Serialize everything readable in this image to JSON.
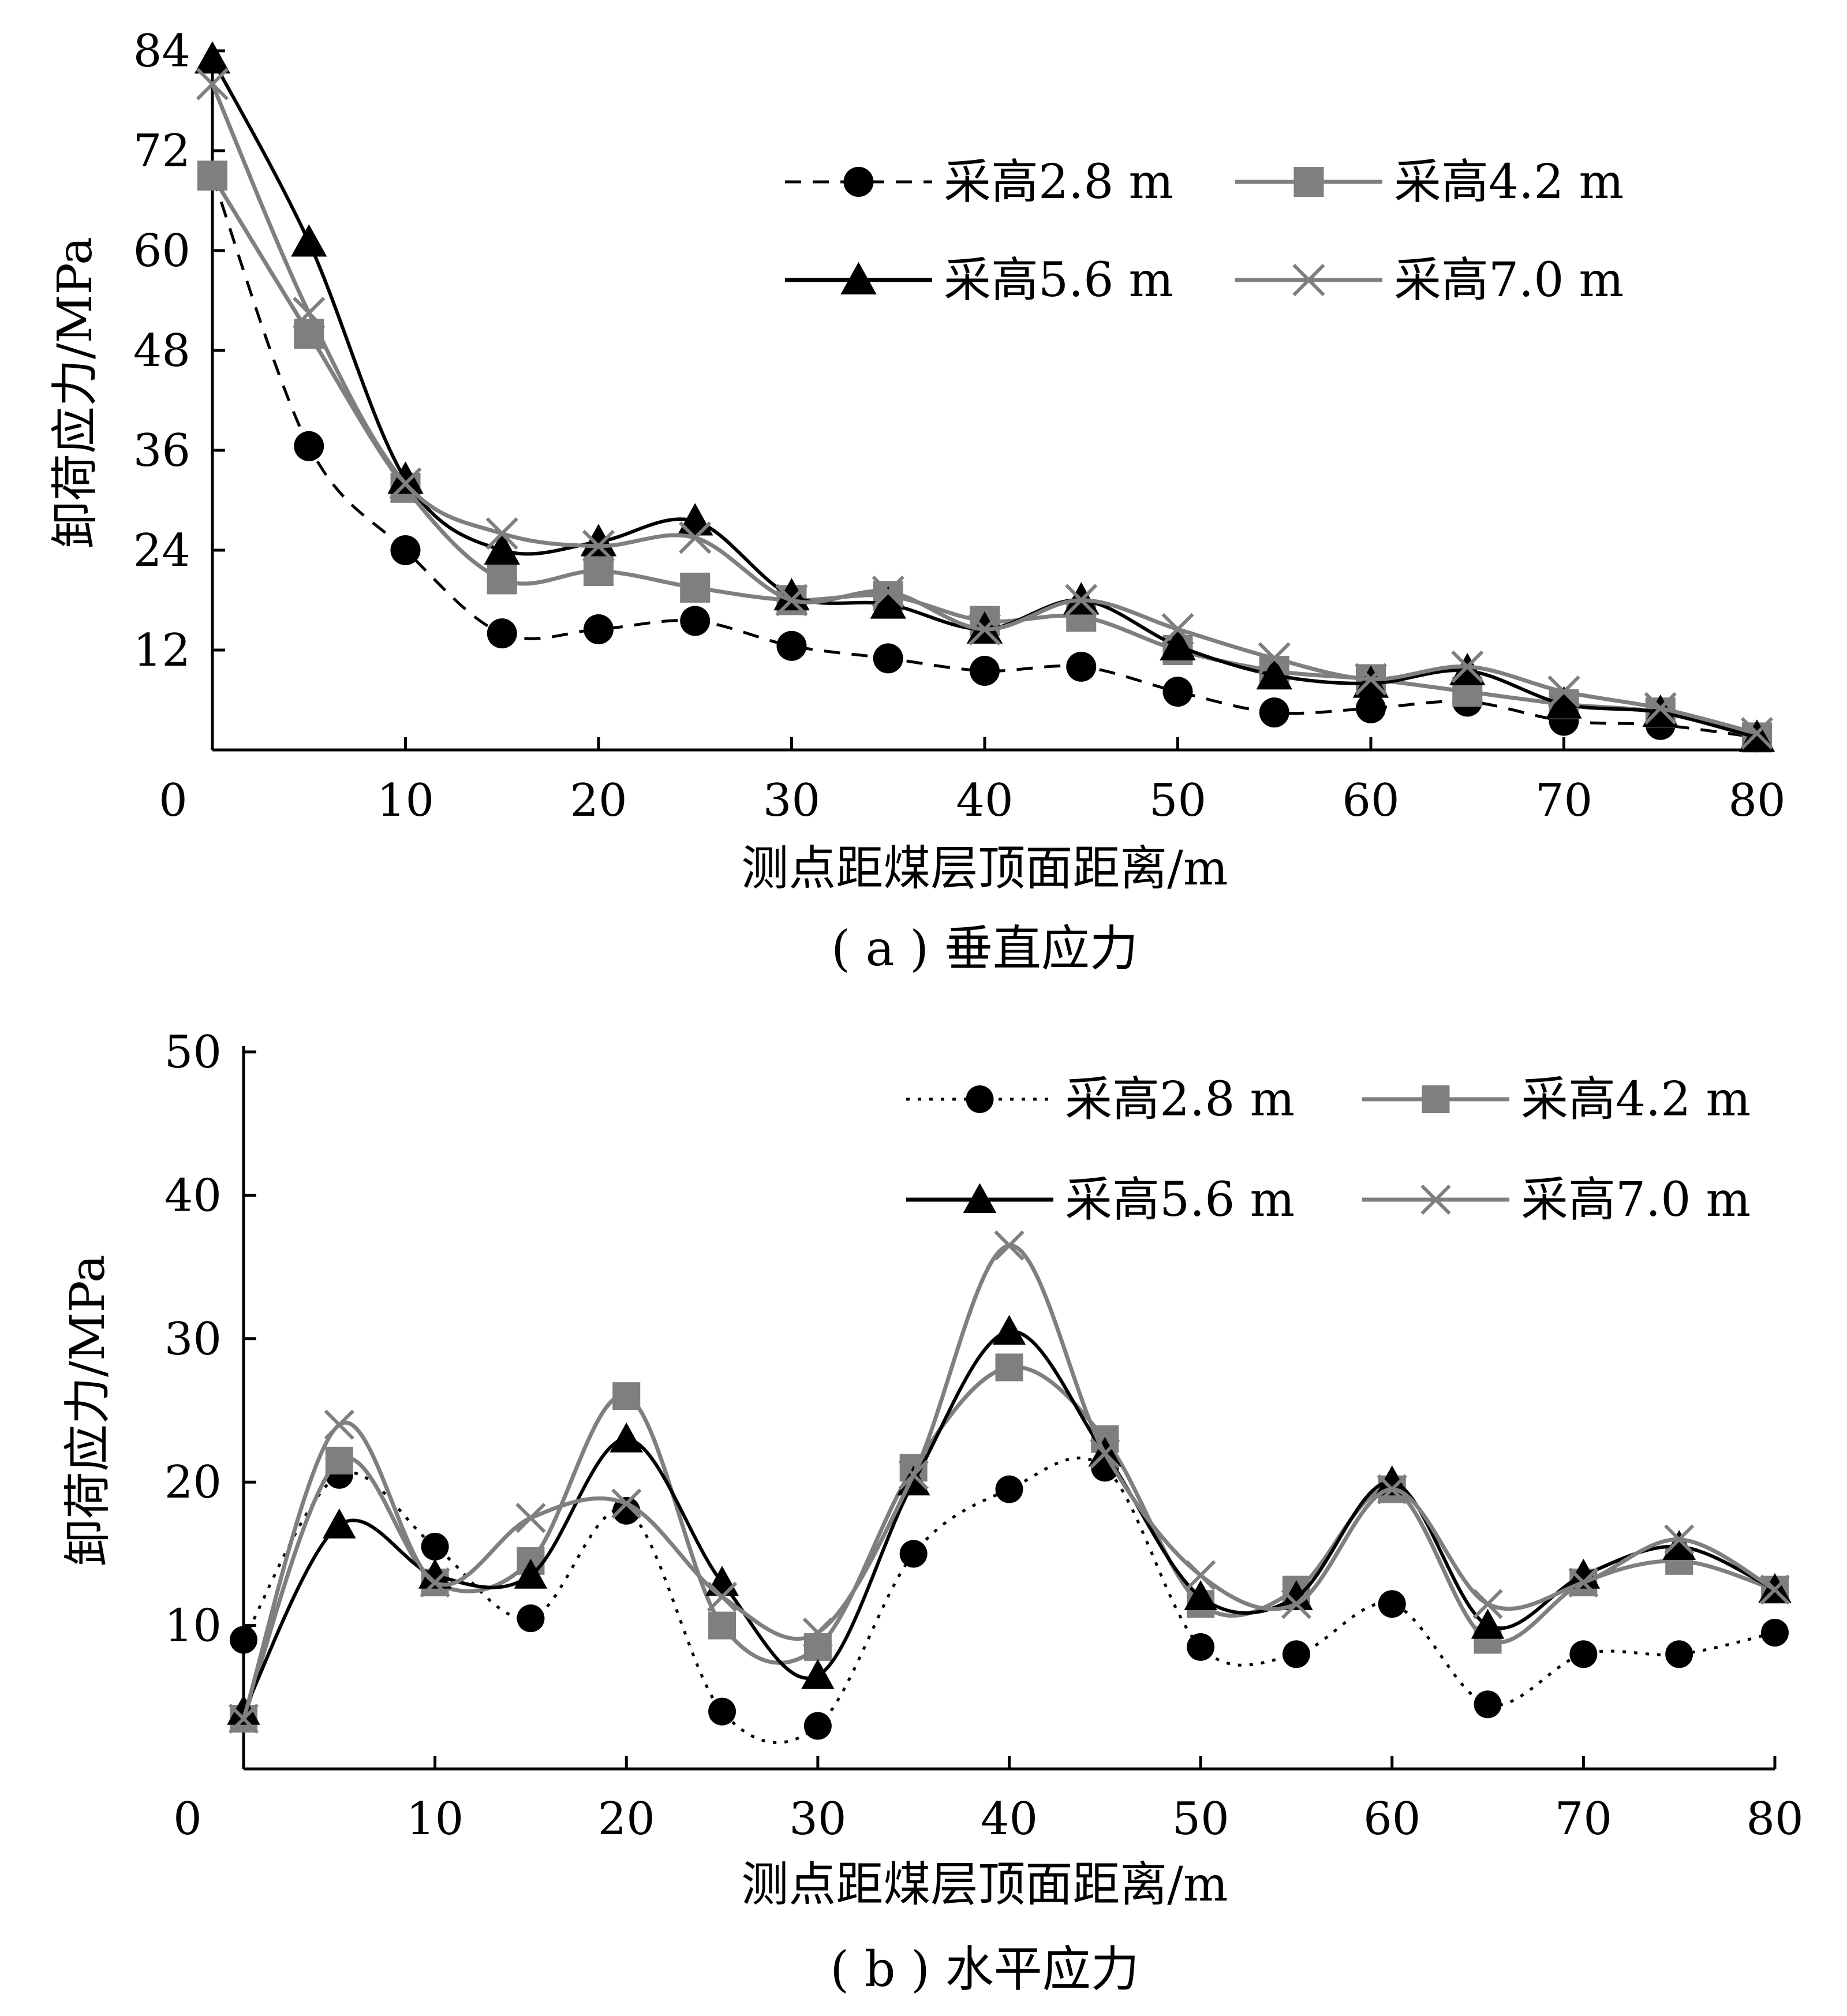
{
  "chart_data": [
    {
      "type": "line",
      "caption": "( a ) 垂直应力",
      "xlabel": "测点距煤层顶面距离/m",
      "ylabel": "卸荷应力/MPa",
      "xlim": [
        0,
        80
      ],
      "ylim": [
        0,
        84
      ],
      "xticks": [
        0,
        10,
        20,
        30,
        40,
        50,
        60,
        70,
        80
      ],
      "yticks": [
        12,
        24,
        36,
        48,
        60,
        72,
        84
      ],
      "x": [
        0,
        5,
        10,
        15,
        20,
        25,
        30,
        35,
        40,
        45,
        50,
        55,
        60,
        65,
        70,
        75,
        80
      ],
      "series": [
        {
          "name": "采高2.8 m",
          "marker": "circle",
          "color": "#000000",
          "dash": "dashed",
          "values": [
            69,
            36.5,
            24,
            14,
            14.5,
            15.5,
            12.5,
            11,
            9.5,
            10,
            7,
            4.5,
            5,
            5.8,
            3.5,
            3,
            1.5
          ]
        },
        {
          "name": "采高4.2 m",
          "marker": "square",
          "color": "#7f7f7f",
          "dash": "solid",
          "values": [
            69,
            50,
            31.5,
            20.5,
            21.5,
            19.5,
            18,
            18.5,
            15.5,
            16,
            12,
            9.5,
            8.5,
            7,
            5.5,
            4.5,
            1.5
          ]
        },
        {
          "name": "采高5.6 m",
          "marker": "triangle",
          "color": "#000000",
          "dash": "solid",
          "values": [
            83,
            61,
            32.5,
            24,
            25,
            27.5,
            18.5,
            17.5,
            14.5,
            18,
            12.5,
            9,
            8,
            9.5,
            5.5,
            4.5,
            1.5
          ]
        },
        {
          "name": "采高7.0 m",
          "marker": "x",
          "color": "#7f7f7f",
          "dash": "solid",
          "values": [
            80,
            52.5,
            32,
            26,
            24.5,
            25.5,
            18,
            19,
            14.5,
            18,
            14.5,
            11,
            8.5,
            10,
            7,
            5,
            2
          ]
        }
      ]
    },
    {
      "type": "line",
      "caption": "( b ) 水平应力",
      "xlabel": "测点距煤层顶面距离/m",
      "ylabel": "卸荷应力/MPa",
      "xlim": [
        0,
        80
      ],
      "ylim": [
        0,
        50
      ],
      "xticks": [
        0,
        10,
        20,
        30,
        40,
        50,
        60,
        70,
        80
      ],
      "yticks": [
        10,
        20,
        30,
        40,
        50
      ],
      "x": [
        0,
        5,
        10,
        15,
        20,
        25,
        30,
        35,
        40,
        45,
        50,
        55,
        60,
        65,
        70,
        75,
        80
      ],
      "series": [
        {
          "name": "采高2.8 m",
          "marker": "circle",
          "color": "#000000",
          "dash": "dotted",
          "values": [
            9,
            20.5,
            15.5,
            10.5,
            18,
            4,
            3,
            15,
            19.5,
            21,
            8.5,
            8,
            11.5,
            4.5,
            8,
            8,
            9.5
          ]
        },
        {
          "name": "采高4.2 m",
          "marker": "square",
          "color": "#7f7f7f",
          "dash": "solid",
          "values": [
            3.5,
            21.5,
            13,
            14.5,
            26,
            10,
            8.5,
            21,
            28,
            23,
            11.5,
            12.5,
            19.5,
            9,
            13,
            14.5,
            12.5
          ]
        },
        {
          "name": "采高5.6 m",
          "marker": "triangle",
          "color": "#000000",
          "dash": "solid",
          "values": [
            4,
            17,
            13.5,
            13.5,
            23,
            13,
            6.5,
            20,
            30.5,
            22,
            12,
            12,
            20,
            10,
            13.5,
            15.5,
            12.5
          ]
        },
        {
          "name": "采高7.0 m",
          "marker": "x",
          "color": "#7f7f7f",
          "dash": "solid",
          "values": [
            3.5,
            24,
            13,
            17.5,
            18.5,
            12,
            9.5,
            20.5,
            36.5,
            22,
            13.5,
            11.5,
            19.5,
            11.5,
            13,
            16,
            12.5
          ]
        }
      ]
    }
  ]
}
